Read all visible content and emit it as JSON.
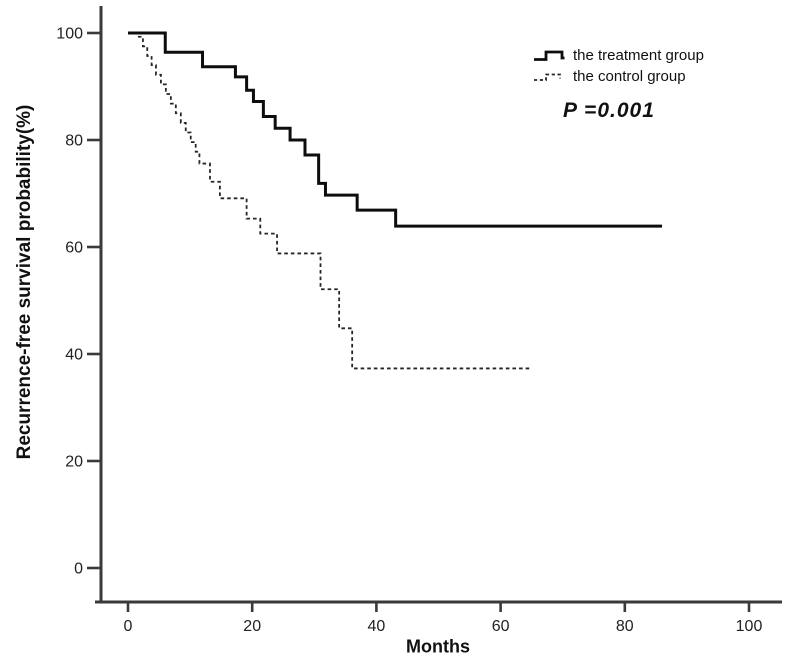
{
  "figure_title": "Kaplan-Meier recurrence-free survival plot",
  "annotation": {
    "p_value": "P =0.001"
  },
  "legend": {
    "items": [
      {
        "label": "the treatment group",
        "style": "solid"
      },
      {
        "label": "the control group",
        "style": "dashed"
      }
    ]
  },
  "colors": {
    "curve_solid": "#0d0d0d",
    "curve_dashed": "#262626",
    "axis": "#3a3a3a",
    "tick_text": "#222222",
    "background": "#ffffff"
  },
  "chart_data": {
    "type": "line",
    "subtype": "kaplan-meier-step",
    "title": "",
    "xlabel": "Months",
    "ylabel": "Recurrence-free survival probability(%)",
    "x_ticks": [
      0,
      20,
      40,
      60,
      80,
      100
    ],
    "y_ticks": [
      0,
      20,
      40,
      60,
      80,
      100
    ],
    "xlim": [
      -5,
      105
    ],
    "ylim": [
      -6,
      104
    ],
    "grid": false,
    "legend_position": "upper right",
    "series": [
      {
        "name": "the treatment group",
        "style": "solid",
        "steps": [
          [
            0,
            100
          ],
          [
            6,
            96.4
          ],
          [
            12,
            93.7
          ],
          [
            17.3,
            91.8
          ],
          [
            19.1,
            89.3
          ],
          [
            20.2,
            87.2
          ],
          [
            21.8,
            84.4
          ],
          [
            23.7,
            82.2
          ],
          [
            26.1,
            80.0
          ],
          [
            28.5,
            77.2
          ],
          [
            30.7,
            71.9
          ],
          [
            31.8,
            69.7
          ],
          [
            36.9,
            66.9
          ],
          [
            43.1,
            63.9
          ]
        ],
        "end_x": 86
      },
      {
        "name": "the control group",
        "style": "dashed",
        "steps": [
          [
            1.6,
            99.3
          ],
          [
            2.4,
            97.5
          ],
          [
            3.1,
            95.7
          ],
          [
            3.8,
            94.0
          ],
          [
            4.5,
            92.2
          ],
          [
            5.3,
            90.4
          ],
          [
            6.1,
            88.6
          ],
          [
            6.9,
            86.8
          ],
          [
            7.7,
            85.0
          ],
          [
            8.5,
            83.2
          ],
          [
            9.3,
            81.4
          ],
          [
            10.1,
            79.6
          ],
          [
            10.9,
            77.8
          ],
          [
            11.5,
            75.6
          ],
          [
            13.2,
            72.2
          ],
          [
            14.8,
            69.1
          ],
          [
            19.1,
            65.3
          ],
          [
            21.3,
            62.5
          ],
          [
            24,
            58.8
          ],
          [
            31,
            52.1
          ],
          [
            34,
            44.8
          ],
          [
            36.1,
            37.3
          ]
        ],
        "end_x": 65
      }
    ],
    "annotation": "P =0.001"
  }
}
